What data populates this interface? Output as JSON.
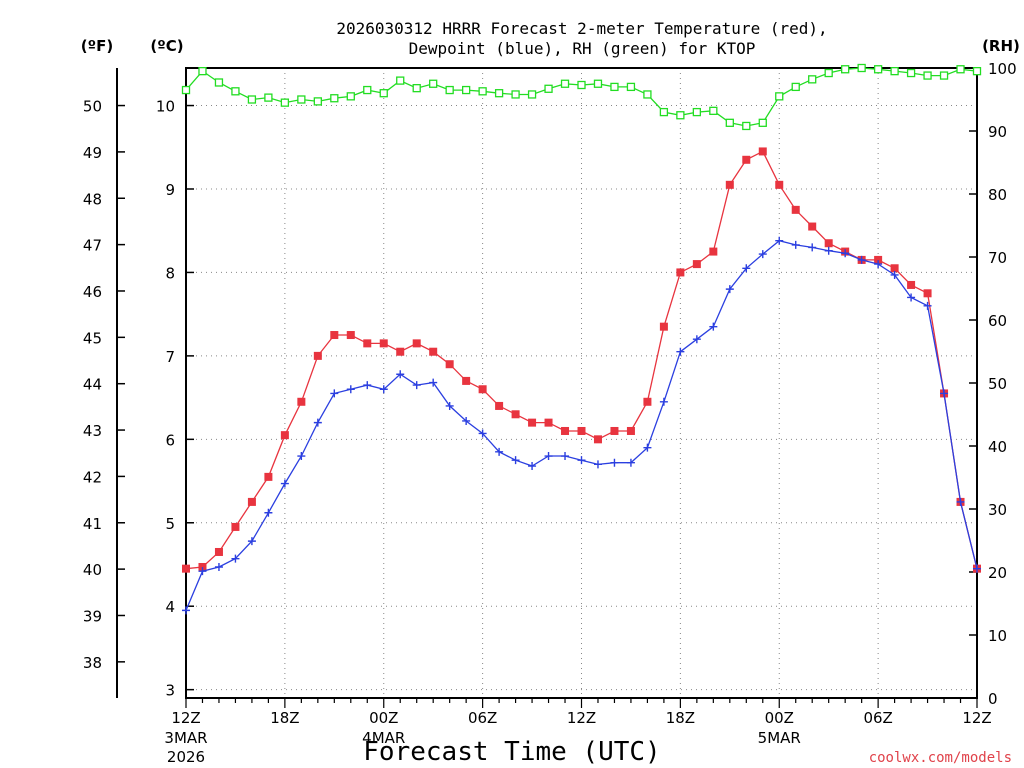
{
  "title_line1": "2026030312 HRRR Forecast 2-meter Temperature (red),",
  "title_line2": "Dewpoint (blue), RH (green) for KTOP",
  "unit_f": "(ºF)",
  "unit_c": "(ºC)",
  "unit_rh": "(RH)",
  "xlabel": "Forecast Time (UTC)",
  "credit": "coolwx.com/models",
  "chart_data": {
    "type": "line",
    "x_unit": "forecast hour from 2026-03-03 12Z",
    "x": [
      0,
      1,
      2,
      3,
      4,
      5,
      6,
      7,
      8,
      9,
      10,
      11,
      12,
      13,
      14,
      15,
      16,
      17,
      18,
      19,
      20,
      21,
      22,
      23,
      24,
      25,
      26,
      27,
      28,
      29,
      30,
      31,
      32,
      33,
      34,
      35,
      36,
      37,
      38,
      39,
      40,
      41,
      42,
      43,
      44,
      45,
      46,
      47,
      48
    ],
    "xlim": [
      0,
      48
    ],
    "x_ticks": [
      {
        "x": 0,
        "label": "12Z",
        "sub1": "3MAR",
        "sub2": "2026"
      },
      {
        "x": 6,
        "label": "18Z",
        "sub1": "",
        "sub2": ""
      },
      {
        "x": 12,
        "label": "00Z",
        "sub1": "4MAR",
        "sub2": ""
      },
      {
        "x": 18,
        "label": "06Z",
        "sub1": "",
        "sub2": ""
      },
      {
        "x": 24,
        "label": "12Z",
        "sub1": "",
        "sub2": ""
      },
      {
        "x": 30,
        "label": "18Z",
        "sub1": "",
        "sub2": ""
      },
      {
        "x": 36,
        "label": "00Z",
        "sub1": "5MAR",
        "sub2": ""
      },
      {
        "x": 42,
        "label": "06Z",
        "sub1": "",
        "sub2": ""
      },
      {
        "x": 48,
        "label": "12Z",
        "sub1": "",
        "sub2": ""
      }
    ],
    "y_c_lim": [
      2.9,
      10.45
    ],
    "y_c_ticks": [
      "3",
      "4",
      "5",
      "6",
      "7",
      "8",
      "9",
      "10"
    ],
    "y_f_ticks": [
      "38",
      "39",
      "40",
      "41",
      "42",
      "43",
      "44",
      "45",
      "46",
      "47",
      "48",
      "49",
      "50"
    ],
    "y_rh_lim": [
      0,
      100
    ],
    "y_rh_ticks": [
      "0",
      "10",
      "20",
      "30",
      "40",
      "50",
      "60",
      "70",
      "80",
      "90",
      "100"
    ],
    "grid": true,
    "series": [
      {
        "name": "Temperature",
        "color": "#e8343f",
        "marker": "filled-square",
        "axis": "celsius",
        "values": [
          4.45,
          4.47,
          4.65,
          4.95,
          5.25,
          5.55,
          6.05,
          6.45,
          7.0,
          7.25,
          7.25,
          7.15,
          7.15,
          7.05,
          7.15,
          7.05,
          6.9,
          6.7,
          6.6,
          6.4,
          6.3,
          6.2,
          6.2,
          6.1,
          6.1,
          6.0,
          6.1,
          6.1,
          6.45,
          7.35,
          8.0,
          8.1,
          8.25,
          9.05,
          9.35,
          9.45,
          9.05,
          8.75,
          8.55,
          8.35,
          8.25,
          8.15,
          8.15,
          8.05,
          7.85,
          7.75,
          6.55,
          5.25,
          4.45
        ]
      },
      {
        "name": "Dewpoint",
        "color": "#2b3fe0",
        "marker": "plus",
        "axis": "celsius",
        "values": [
          3.95,
          4.42,
          4.47,
          4.57,
          4.78,
          5.12,
          5.47,
          5.8,
          6.2,
          6.55,
          6.6,
          6.65,
          6.6,
          6.78,
          6.65,
          6.68,
          6.4,
          6.22,
          6.07,
          5.85,
          5.75,
          5.68,
          5.8,
          5.8,
          5.75,
          5.7,
          5.72,
          5.72,
          5.9,
          6.45,
          7.05,
          7.2,
          7.35,
          7.8,
          8.05,
          8.22,
          8.38,
          8.33,
          8.3,
          8.26,
          8.23,
          8.15,
          8.1,
          7.97,
          7.7,
          7.6,
          6.55,
          5.25,
          4.45
        ]
      },
      {
        "name": "RH",
        "color": "#22dd22",
        "marker": "open-square",
        "axis": "rh",
        "values": [
          96.5,
          99.5,
          97.7,
          96.3,
          95.0,
          95.3,
          94.5,
          95.0,
          94.7,
          95.2,
          95.5,
          96.5,
          96.0,
          98.0,
          96.8,
          97.5,
          96.5,
          96.5,
          96.3,
          96.0,
          95.8,
          95.8,
          96.7,
          97.5,
          97.3,
          97.5,
          97.0,
          97.0,
          95.8,
          93.0,
          92.5,
          93.0,
          93.2,
          91.3,
          90.8,
          91.3,
          95.5,
          97.0,
          98.2,
          99.2,
          99.8,
          100.0,
          99.8,
          99.5,
          99.2,
          98.8,
          98.8,
          99.8,
          99.5
        ]
      }
    ]
  }
}
